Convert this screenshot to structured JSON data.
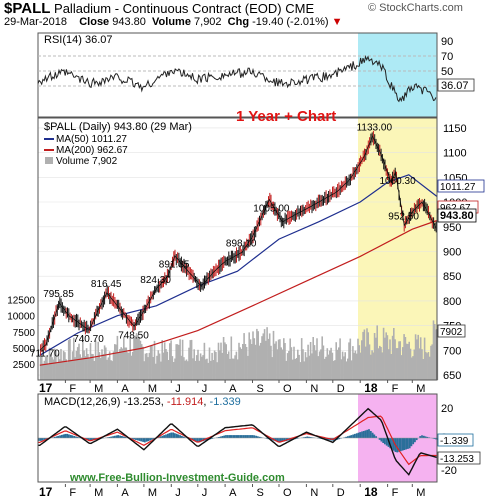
{
  "header": {
    "symbol": "$PALL",
    "name": "Palladium - Continuous Contract (EOD)",
    "exchange": "CME",
    "date": "29-Mar-2018",
    "close_label": "Close",
    "close": "943.80",
    "volume_label": "Volume",
    "volume": "7,902",
    "chg_label": "Chg",
    "chg": "-19.40 (-2.01%)",
    "chg_arrow": "▼",
    "logo": "© StockCharts.com"
  },
  "rsi": {
    "label": "RSI(14) 36.07",
    "current": "36.07",
    "ticks": [
      "90",
      "70",
      "50",
      "30"
    ]
  },
  "main": {
    "legend_title": "$PALL (Daily) 943.80 (29 Mar)",
    "legend_ma50": "MA(50) 1011.27",
    "legend_ma200": "MA(200) 962.67",
    "legend_volume": "Volume 7,902",
    "annotation": "1 Year + Chart",
    "price_ticks": [
      "1150",
      "1100",
      "1050",
      "1000",
      "950",
      "900",
      "850",
      "800",
      "750",
      "700",
      "650"
    ],
    "volume_ticks": [
      "12500",
      "10000",
      "7500",
      "5000",
      "2500"
    ],
    "right_labels": {
      "ma50": "1011.27",
      "ma200": "962.67",
      "close": "943.80",
      "volume": "7902"
    },
    "x_labels": [
      "17",
      "F",
      "M",
      "A",
      "M",
      "J",
      "J",
      "A",
      "S",
      "O",
      "N",
      "D",
      "18",
      "F",
      "M"
    ],
    "price_annotations": [
      {
        "date": "2017-01-10",
        "price": 711.7,
        "text": "711.70"
      },
      {
        "date": "2017-01-25",
        "price": 795.85,
        "text": "795.85"
      },
      {
        "date": "2017-02-28",
        "price": 740.7,
        "text": "740.70"
      },
      {
        "date": "2017-03-20",
        "price": 816.45,
        "text": "816.45"
      },
      {
        "date": "2017-04-20",
        "price": 748.5,
        "text": "748.50"
      },
      {
        "date": "2017-05-15",
        "price": 824.3,
        "text": "824.30"
      },
      {
        "date": "2017-06-05",
        "price": 891.35,
        "text": "891.35"
      },
      {
        "date": "2017-08-20",
        "price": 898.1,
        "text": "898.10"
      },
      {
        "date": "2017-09-20",
        "price": 1005.0,
        "text": "1005.00"
      },
      {
        "date": "2018-01-15",
        "price": 1133.0,
        "text": "1133.00"
      },
      {
        "date": "2018-02-10",
        "price": 1060.3,
        "text": "1060.30"
      },
      {
        "date": "2018-02-20",
        "price": 952.5,
        "text": "952.50"
      }
    ]
  },
  "macd": {
    "label": "MACD(12,26,9)",
    "v1": "-13.253",
    "v2": "-11.914",
    "v3": "-1.339",
    "ticks": [
      "20",
      "0",
      "-20"
    ],
    "right_labels": {
      "hist": "-1.339",
      "macd": "-13.253"
    }
  },
  "footer": {
    "url": "www.Free-Bullion-Investment-Guide.com"
  },
  "colors": {
    "rsi_highlight": "#aeeaf5",
    "price_highlight": "#fbf6b8",
    "macd_highlight": "#f5b2f0",
    "ma50": "#1f2f8f",
    "ma200": "#c21e1e",
    "annotation": "#e11414",
    "volume": "#b0b0b0",
    "footer_text": "#2e8b2e"
  },
  "chart_data": {
    "type": "line",
    "title": "$PALL Palladium - Continuous Contract (EOD)",
    "x_range": [
      "2017-01-01",
      "2018-03-29"
    ],
    "price_ylim": [
      640,
      1170
    ],
    "price": {
      "dates": [
        "2017-01-03",
        "2017-01-10",
        "2017-01-25",
        "2017-02-05",
        "2017-02-28",
        "2017-03-10",
        "2017-03-20",
        "2017-04-01",
        "2017-04-20",
        "2017-05-01",
        "2017-05-15",
        "2017-05-28",
        "2017-06-05",
        "2017-06-20",
        "2017-07-05",
        "2017-07-20",
        "2017-08-01",
        "2017-08-20",
        "2017-09-01",
        "2017-09-20",
        "2017-10-05",
        "2017-10-20",
        "2017-11-05",
        "2017-11-20",
        "2017-12-05",
        "2017-12-20",
        "2018-01-05",
        "2018-01-15",
        "2018-01-25",
        "2018-02-05",
        "2018-02-10",
        "2018-02-20",
        "2018-03-01",
        "2018-03-12",
        "2018-03-20",
        "2018-03-29"
      ],
      "values": [
        700,
        711.7,
        795.85,
        770,
        740.7,
        780,
        816.45,
        790,
        748.5,
        780,
        824.3,
        850,
        891.35,
        860,
        830,
        860,
        880,
        898.1,
        930,
        1005,
        960,
        975,
        990,
        1005,
        1020,
        1045,
        1090,
        1133,
        1095,
        1040,
        1060.3,
        952.5,
        980,
        1000,
        975,
        943.8
      ]
    },
    "ma50": {
      "dates": [
        "2017-01-03",
        "2017-02-15",
        "2017-04-01",
        "2017-05-15",
        "2017-07-01",
        "2017-08-15",
        "2017-10-01",
        "2017-11-15",
        "2018-01-01",
        "2018-02-01",
        "2018-02-25",
        "2018-03-29"
      ],
      "values": [
        690,
        735,
        770,
        790,
        830,
        860,
        925,
        960,
        1000,
        1040,
        1055,
        1011.27
      ]
    },
    "ma200": {
      "dates": [
        "2017-01-03",
        "2017-03-01",
        "2017-05-01",
        "2017-07-01",
        "2017-09-01",
        "2017-11-01",
        "2018-01-01",
        "2018-03-01",
        "2018-03-29"
      ],
      "values": [
        670,
        685,
        705,
        740,
        790,
        840,
        890,
        945,
        962.67
      ]
    },
    "rsi": {
      "ylim": [
        20,
        100
      ],
      "dates": [
        "2017-01-03",
        "2017-02-01",
        "2017-03-01",
        "2017-04-01",
        "2017-05-01",
        "2017-06-01",
        "2017-07-01",
        "2017-08-01",
        "2017-09-01",
        "2017-10-01",
        "2017-11-01",
        "2017-12-01",
        "2018-01-10",
        "2018-01-25",
        "2018-02-05",
        "2018-02-15",
        "2018-03-01",
        "2018-03-15",
        "2018-03-29"
      ],
      "values": [
        55,
        62,
        52,
        58,
        48,
        65,
        56,
        60,
        63,
        52,
        55,
        60,
        75,
        68,
        50,
        35,
        48,
        45,
        36.07
      ]
    },
    "volume": {
      "ylim": [
        0,
        14000
      ],
      "dates": [
        "2017-01-15",
        "2017-02-15",
        "2017-03-15",
        "2017-04-15",
        "2017-05-15",
        "2017-06-15",
        "2017-07-15",
        "2017-08-15",
        "2017-09-15",
        "2017-10-15",
        "2017-11-15",
        "2017-12-15",
        "2018-01-15",
        "2018-02-15",
        "2018-03-15",
        "2018-03-29"
      ],
      "values": [
        4000,
        5200,
        4600,
        5800,
        4500,
        5200,
        4800,
        5600,
        6200,
        4700,
        5400,
        5000,
        6500,
        6000,
        5200,
        7902
      ]
    },
    "macd": {
      "ylim": [
        -30,
        30
      ],
      "dates": [
        "2017-01-03",
        "2017-02-01",
        "2017-03-01",
        "2017-04-01",
        "2017-05-01",
        "2017-06-01",
        "2017-07-01",
        "2017-08-01",
        "2017-09-01",
        "2017-10-01",
        "2017-11-01",
        "2017-12-01",
        "2018-01-10",
        "2018-01-25",
        "2018-02-10",
        "2018-02-25",
        "2018-03-10",
        "2018-03-29"
      ],
      "macd": [
        -5,
        8,
        -4,
        6,
        -8,
        10,
        -6,
        7,
        9,
        -6,
        4,
        -3,
        20,
        12,
        -15,
        -25,
        -10,
        -13.253
      ],
      "signal": [
        -3,
        5,
        -2,
        4,
        -5,
        6,
        -3,
        5,
        7,
        -3,
        3,
        -1,
        14,
        15,
        -5,
        -18,
        -12,
        -11.914
      ]
    }
  }
}
